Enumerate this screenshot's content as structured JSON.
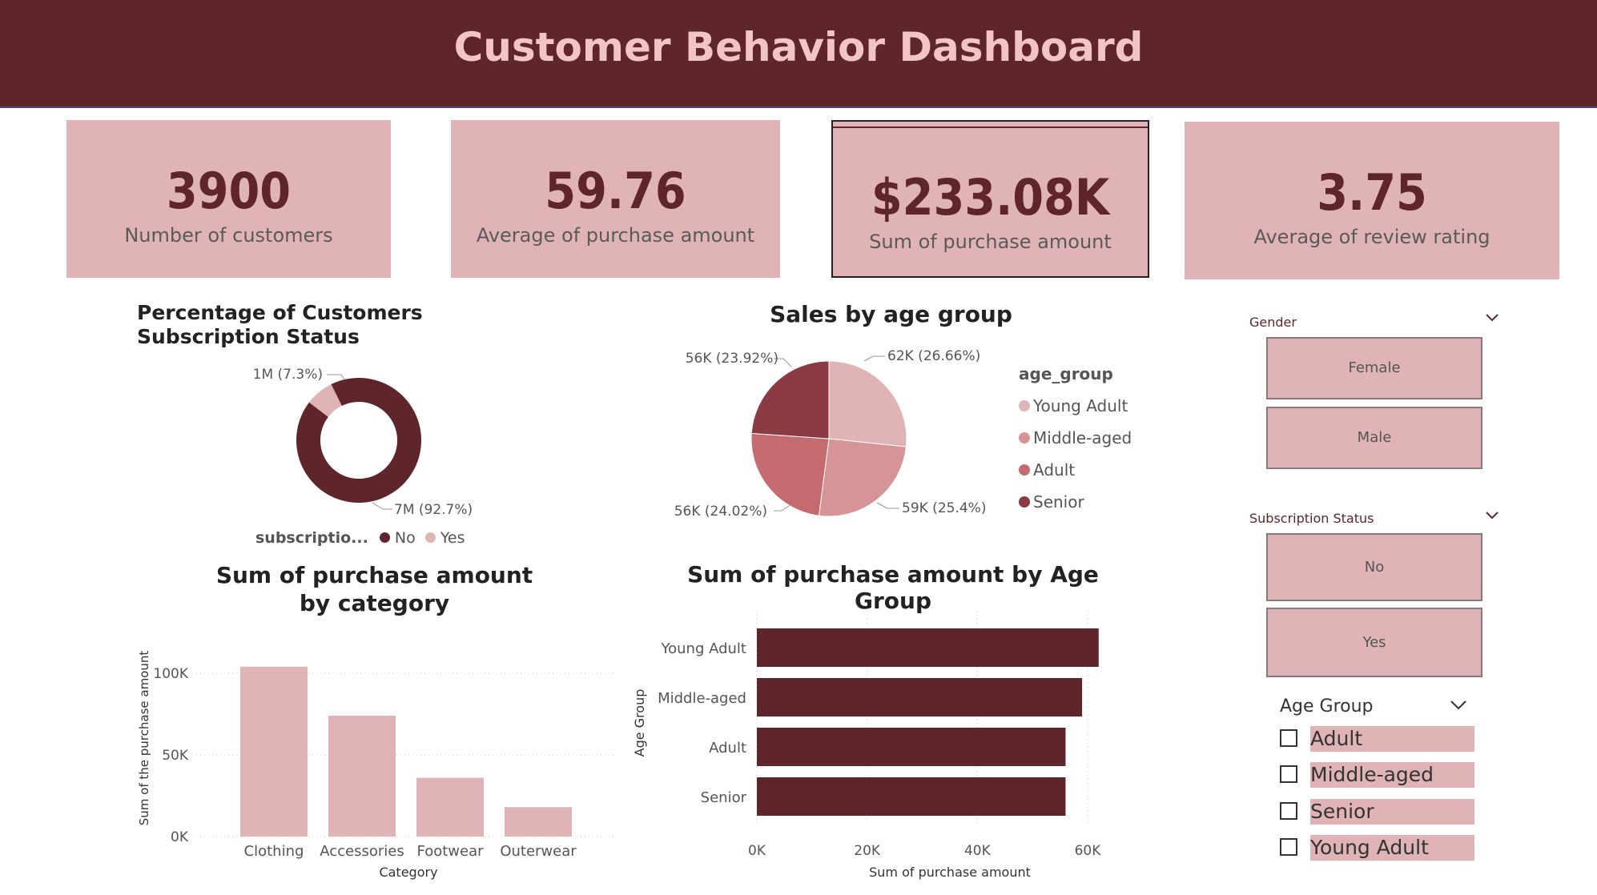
{
  "header": {
    "title": "Customer Behavior Dashboard"
  },
  "kpis": [
    {
      "value": "3900",
      "label": "Number of customers"
    },
    {
      "value": "59.76",
      "label": "Average of purchase amount"
    },
    {
      "value": "$233.08K",
      "label": "Sum of purchase amount"
    },
    {
      "value": "3.75",
      "label": "Average of review rating"
    }
  ],
  "colors": {
    "dark": "#5e262b",
    "pink": "#e0b4b6",
    "mid": "#d69497",
    "rose": "#c56b70",
    "wine": "#8c3a42"
  },
  "filters": {
    "gender": {
      "title": "Gender",
      "options": [
        "Female",
        "Male"
      ]
    },
    "subscription": {
      "title": "Subscription Status",
      "options": [
        "No",
        "Yes"
      ]
    },
    "age_group": {
      "title": "Age Group",
      "options": [
        "Adult",
        "Middle-aged",
        "Senior",
        "Young Adult"
      ]
    }
  },
  "chart_data": [
    {
      "type": "pie",
      "title": "Percentage of Customers Subscription Status",
      "legend_title": "subscriptio...",
      "categories": [
        "No",
        "Yes"
      ],
      "values": [
        92.7,
        7.3
      ],
      "data_labels": [
        "7M (92.7%)",
        "1M (7.3%)"
      ],
      "colors": [
        "#5e262b",
        "#e0b4b6"
      ]
    },
    {
      "type": "pie",
      "title": "Sales by age group",
      "legend_title": "age_group",
      "categories": [
        "Young Adult",
        "Middle-aged",
        "Adult",
        "Senior"
      ],
      "values": [
        26.66,
        25.4,
        24.02,
        23.92
      ],
      "data_labels": [
        "62K (26.66%)",
        "59K (25.4%)",
        "56K (24.02%)",
        "56K (23.92%)"
      ],
      "colors": [
        "#e0b4b6",
        "#d69497",
        "#c56b70",
        "#8c3a42"
      ]
    },
    {
      "type": "bar",
      "title": "Sum of purchase amount by category",
      "categories": [
        "Clothing",
        "Accessories",
        "Footwear",
        "Outerwear"
      ],
      "values": [
        104000,
        74000,
        36000,
        18000
      ],
      "xlabel": "Category",
      "ylabel": "Sum of the purchase amount",
      "ylim": [
        0,
        100000
      ],
      "yticks": [
        "0K",
        "50K",
        "100K"
      ]
    },
    {
      "type": "bar",
      "orientation": "horizontal",
      "title": "Sum of purchase amount by Age Group",
      "categories": [
        "Young Adult",
        "Middle-aged",
        "Adult",
        "Senior"
      ],
      "values": [
        62000,
        59000,
        56000,
        56000
      ],
      "xlabel": "Sum of purchase amount",
      "ylabel": "Age Group",
      "xlim": [
        0,
        60000
      ],
      "xticks": [
        "0K",
        "20K",
        "40K",
        "60K"
      ]
    }
  ]
}
